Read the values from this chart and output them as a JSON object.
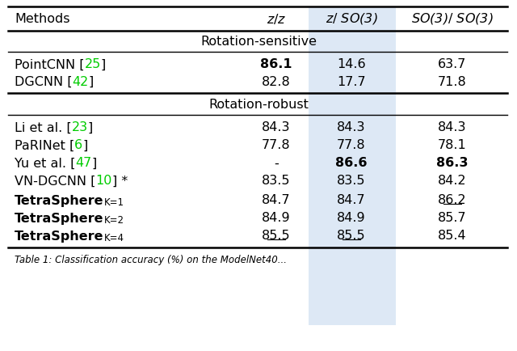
{
  "rows_sensitive": [
    {
      "method_parts": [
        [
          "PointCNN [",
          false,
          "black"
        ],
        [
          "25",
          false,
          "#00cc00"
        ],
        [
          "]",
          false,
          "black"
        ]
      ],
      "zz": "86.1",
      "zso3": "14.6",
      "so3so3": "63.7",
      "zz_bold": true,
      "zso3_bold": false,
      "so3so3_bold": false,
      "zz_ul": false,
      "zso3_ul": false,
      "so3so3_ul": false
    },
    {
      "method_parts": [
        [
          "DGCNN [",
          false,
          "black"
        ],
        [
          "42",
          false,
          "#00cc00"
        ],
        [
          "]",
          false,
          "black"
        ]
      ],
      "zz": "82.8",
      "zso3": "17.7",
      "so3so3": "71.8",
      "zz_bold": false,
      "zso3_bold": false,
      "so3so3_bold": false,
      "zz_ul": false,
      "zso3_ul": false,
      "so3so3_ul": false
    }
  ],
  "rows_robust": [
    {
      "method_parts": [
        [
          "Li et al. [",
          false,
          "black"
        ],
        [
          "23",
          false,
          "#00cc00"
        ],
        [
          "]",
          false,
          "black"
        ]
      ],
      "zz": "84.3",
      "zso3": "84.3",
      "so3so3": "84.3",
      "zz_bold": false,
      "zso3_bold": false,
      "so3so3_bold": false,
      "zz_ul": false,
      "zso3_ul": false,
      "so3so3_ul": false
    },
    {
      "method_parts": [
        [
          "PaRINet [",
          false,
          "black"
        ],
        [
          "6",
          false,
          "#00cc00"
        ],
        [
          "]",
          false,
          "black"
        ]
      ],
      "zz": "77.8",
      "zso3": "77.8",
      "so3so3": "78.1",
      "zz_bold": false,
      "zso3_bold": false,
      "so3so3_bold": false,
      "zz_ul": false,
      "zso3_ul": false,
      "so3so3_ul": false
    },
    {
      "method_parts": [
        [
          "Yu et al. [",
          false,
          "black"
        ],
        [
          "47",
          false,
          "#00cc00"
        ],
        [
          "]",
          false,
          "black"
        ]
      ],
      "zz": "-",
      "zso3": "86.6",
      "so3so3": "86.3",
      "zz_bold": false,
      "zso3_bold": true,
      "so3so3_bold": true,
      "zz_ul": false,
      "zso3_ul": false,
      "so3so3_ul": false
    },
    {
      "method_parts": [
        [
          "VN-DGCNN [",
          false,
          "black"
        ],
        [
          "10",
          false,
          "#00cc00"
        ],
        [
          "] *",
          false,
          "black"
        ]
      ],
      "zz": "83.5",
      "zso3": "83.5",
      "so3so3": "84.2",
      "zz_bold": false,
      "zso3_bold": false,
      "so3so3_bold": false,
      "zz_ul": false,
      "zso3_ul": false,
      "so3so3_ul": false
    },
    {
      "method_parts": [
        [
          "TetraSphere",
          true,
          "black"
        ]
      ],
      "method_sub": "K=1",
      "zz": "84.7",
      "zso3": "84.7",
      "so3so3": "86.2",
      "zz_bold": false,
      "zso3_bold": false,
      "so3so3_bold": false,
      "zz_ul": false,
      "zso3_ul": false,
      "so3so3_ul": true
    },
    {
      "method_parts": [
        [
          "TetraSphere",
          true,
          "black"
        ]
      ],
      "method_sub": "K=2",
      "zz": "84.9",
      "zso3": "84.9",
      "so3so3": "85.7",
      "zz_bold": false,
      "zso3_bold": false,
      "so3so3_bold": false,
      "zz_ul": false,
      "zso3_ul": false,
      "so3so3_ul": false
    },
    {
      "method_parts": [
        [
          "TetraSphere",
          true,
          "black"
        ]
      ],
      "method_sub": "K=4",
      "zz": "85.5",
      "zso3": "85.5",
      "so3so3": "85.4",
      "zz_bold": false,
      "zso3_bold": false,
      "so3so3_bold": false,
      "zz_ul": true,
      "zso3_ul": true,
      "so3so3_ul": false
    }
  ],
  "highlight_color": "#dde8f5",
  "background_color": "#ffffff",
  "font_size": 11.5
}
